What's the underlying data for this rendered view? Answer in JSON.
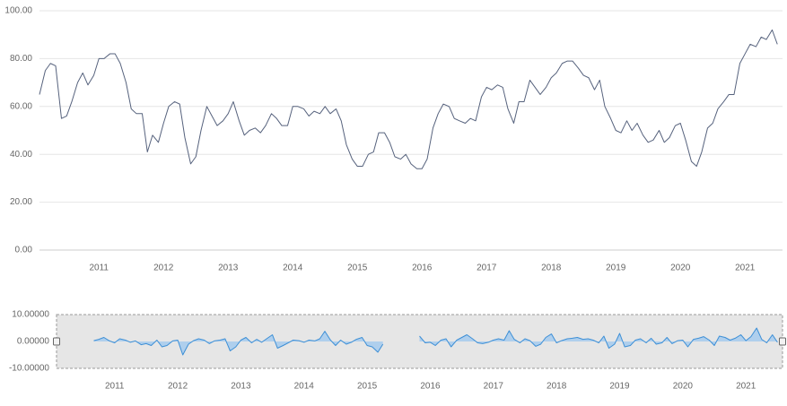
{
  "chart_data": [
    {
      "type": "line",
      "x": [
        2010.08,
        2010.17,
        2010.25,
        2010.33,
        2010.42,
        2010.5,
        2010.58,
        2010.67,
        2010.75,
        2010.83,
        2010.92,
        2011,
        2011.08,
        2011.17,
        2011.25,
        2011.33,
        2011.42,
        2011.5,
        2011.58,
        2011.67,
        2011.75,
        2011.83,
        2011.92,
        2012,
        2012.08,
        2012.17,
        2012.25,
        2012.33,
        2012.42,
        2012.5,
        2012.58,
        2012.67,
        2012.75,
        2012.83,
        2012.92,
        2013,
        2013.08,
        2013.17,
        2013.25,
        2013.33,
        2013.42,
        2013.5,
        2013.58,
        2013.67,
        2013.75,
        2013.83,
        2013.92,
        2014,
        2014.08,
        2014.17,
        2014.25,
        2014.33,
        2014.42,
        2014.5,
        2014.58,
        2014.67,
        2014.75,
        2014.83,
        2014.92,
        2015,
        2015.08,
        2015.17,
        2015.25,
        2015.33,
        2015.42,
        2015.5,
        2015.58,
        2015.67,
        2015.75,
        2015.83,
        2015.92,
        2016,
        2016.08,
        2016.17,
        2016.25,
        2016.33,
        2016.42,
        2016.5,
        2016.58,
        2016.67,
        2016.75,
        2016.83,
        2016.92,
        2017,
        2017.08,
        2017.17,
        2017.25,
        2017.33,
        2017.42,
        2017.5,
        2017.58,
        2017.67,
        2017.75,
        2017.83,
        2017.92,
        2018,
        2018.08,
        2018.17,
        2018.25,
        2018.33,
        2018.42,
        2018.5,
        2018.58,
        2018.67,
        2018.75,
        2018.83,
        2018.92,
        2019,
        2019.08,
        2019.17,
        2019.25,
        2019.33,
        2019.42,
        2019.5,
        2019.58,
        2019.67,
        2019.75,
        2019.83,
        2019.92,
        2020,
        2020.08,
        2020.17,
        2020.25,
        2020.33,
        2020.42,
        2020.5,
        2020.58,
        2020.67,
        2020.75,
        2020.83,
        2020.92,
        2021,
        2021.08,
        2021.17,
        2021.25,
        2021.33,
        2021.42,
        2021.5
      ],
      "series": [
        {
          "color": "#56627d",
          "values": [
            65,
            75,
            78,
            77,
            55,
            56,
            62,
            70,
            74,
            69,
            73,
            80,
            80,
            82,
            82,
            78,
            70,
            59,
            57,
            57,
            41,
            48,
            45,
            53,
            60,
            62,
            61,
            47,
            36,
            39,
            50,
            60,
            56,
            52,
            54,
            57,
            62,
            54,
            48,
            50,
            51,
            49,
            52,
            57,
            55,
            52,
            52,
            60,
            60,
            59,
            56,
            58,
            57,
            60,
            57,
            59,
            54,
            44,
            38,
            35,
            35,
            40,
            41,
            49,
            49,
            45,
            39,
            38,
            40,
            36,
            34,
            34,
            38,
            51,
            57,
            61,
            60,
            55,
            54,
            53,
            55,
            54,
            64,
            68,
            67,
            69,
            68,
            59,
            53,
            62,
            62,
            71,
            68,
            65,
            68,
            72,
            74,
            78,
            79,
            79,
            76,
            73,
            72,
            67,
            71,
            60,
            55,
            50,
            49,
            54,
            50,
            53,
            48,
            45,
            46,
            50,
            45,
            47,
            52,
            53,
            46,
            37,
            35,
            41,
            51,
            53,
            59,
            62,
            65,
            65,
            78,
            82,
            86,
            85,
            89,
            88,
            92,
            86
          ]
        }
      ],
      "xlim": [
        2010.08,
        2021.58
      ],
      "xticks": [
        2011,
        2012,
        2013,
        2014,
        2015,
        2016,
        2017,
        2018,
        2019,
        2020,
        2021
      ],
      "ylim": [
        0,
        100
      ],
      "yticks": [
        {
          "value": 0,
          "label": "0.00"
        },
        {
          "value": 20,
          "label": "20.00"
        },
        {
          "value": 40,
          "label": "40.00"
        },
        {
          "value": 60,
          "label": "60.00"
        },
        {
          "value": 80,
          "label": "80.00"
        },
        {
          "value": 100,
          "label": "100.00"
        }
      ],
      "grid": true
    },
    {
      "type": "area",
      "x": [
        2010.08,
        2010.17,
        2010.25,
        2010.33,
        2010.42,
        2010.5,
        2010.58,
        2010.67,
        2010.75,
        2010.83,
        2010.92,
        2011,
        2011.08,
        2011.17,
        2011.25,
        2011.33,
        2011.42,
        2011.5,
        2011.58,
        2011.67,
        2011.75,
        2011.83,
        2011.92,
        2012,
        2012.08,
        2012.17,
        2012.25,
        2012.33,
        2012.42,
        2012.5,
        2012.58,
        2012.67,
        2012.75,
        2012.83,
        2012.92,
        2013,
        2013.08,
        2013.17,
        2013.25,
        2013.33,
        2013.42,
        2013.5,
        2013.58,
        2013.67,
        2013.75,
        2013.83,
        2013.92,
        2014,
        2014.08,
        2014.17,
        2014.25,
        2014.33,
        2014.42,
        2014.5,
        2014.58,
        2014.67,
        2014.75,
        2014.83,
        2014.92,
        2015,
        2015.08,
        2015.17,
        2015.25,
        2015.33,
        2015.42,
        2015.5,
        2015.58,
        2015.67,
        2015.75,
        2015.83,
        2015.92,
        2016,
        2016.08,
        2016.17,
        2016.25,
        2016.33,
        2016.42,
        2016.5,
        2016.58,
        2016.67,
        2016.75,
        2016.83,
        2016.92,
        2017,
        2017.08,
        2017.17,
        2017.25,
        2017.33,
        2017.42,
        2017.5,
        2017.58,
        2017.67,
        2017.75,
        2017.83,
        2017.92,
        2018,
        2018.08,
        2018.17,
        2018.25,
        2018.33,
        2018.42,
        2018.5,
        2018.58,
        2018.67,
        2018.75,
        2018.83,
        2018.92,
        2019,
        2019.08,
        2019.17,
        2019.25,
        2019.33,
        2019.42,
        2019.5,
        2019.58,
        2019.67,
        2019.75,
        2019.83,
        2019.92,
        2020,
        2020.08,
        2020.17,
        2020.25,
        2020.33,
        2020.42,
        2020.5,
        2020.58,
        2020.67,
        2020.75,
        2020.83,
        2020.92,
        2021,
        2021.08,
        2021.17,
        2021.25,
        2021.33,
        2021.42,
        2021.5
      ],
      "series": [
        {
          "color": "#3d8fd6",
          "values": [
            null,
            null,
            null,
            null,
            null,
            null,
            null,
            0.3,
            0.8,
            1.5,
            0.2,
            -0.5,
            1,
            0.5,
            -0.3,
            0.2,
            -1.2,
            -0.8,
            -1.5,
            0.5,
            -2,
            -1.5,
            0.2,
            0.5,
            -5,
            -1,
            0.3,
            1,
            0.5,
            -0.8,
            0.2,
            0.5,
            1,
            -3.5,
            -2,
            0.5,
            1.5,
            -0.5,
            0.8,
            -0.3,
            1.2,
            2.5,
            -2.5,
            -1.5,
            -0.5,
            0.5,
            0.3,
            -0.3,
            0.5,
            0.2,
            1,
            3.8,
            0.5,
            -1.5,
            0.5,
            -1,
            -0.3,
            0.8,
            1.5,
            -1.5,
            -2,
            -4,
            -1,
            null,
            null,
            null,
            null,
            null,
            null,
            2,
            -0.5,
            -0.3,
            -1.5,
            0.5,
            1,
            -2,
            0.5,
            1.5,
            2.5,
            1,
            -0.5,
            -0.8,
            -0.3,
            0.5,
            1,
            0.5,
            4,
            0.8,
            -0.5,
            1,
            0.3,
            -1.8,
            -1,
            1.5,
            2.8,
            -0.5,
            0.3,
            1,
            1.2,
            1.5,
            0.8,
            1,
            0.5,
            -0.5,
            2,
            -2.5,
            -1,
            3,
            -2,
            -1.5,
            0.5,
            1,
            -0.5,
            1.2,
            -1,
            -0.5,
            1.5,
            -0.8,
            0.3,
            0.5,
            -2,
            0.8,
            1.2,
            1.8,
            0.5,
            -1.5,
            2,
            1.5,
            0.5,
            1.2,
            2.5,
            0.3,
            1.8,
            5,
            0.8,
            -0.5,
            2.5,
            -0.3
          ]
        }
      ],
      "xlim": [
        2010.08,
        2021.58
      ],
      "xticks": [
        2011,
        2012,
        2013,
        2014,
        2015,
        2016,
        2017,
        2018,
        2019,
        2020,
        2021
      ],
      "ylim": [
        -10,
        10
      ],
      "yticks": [
        {
          "value": -10,
          "label": "-10.00000"
        },
        {
          "value": 0,
          "label": "0.00000"
        },
        {
          "value": 10,
          "label": "10.00000"
        }
      ],
      "grid": false
    }
  ]
}
